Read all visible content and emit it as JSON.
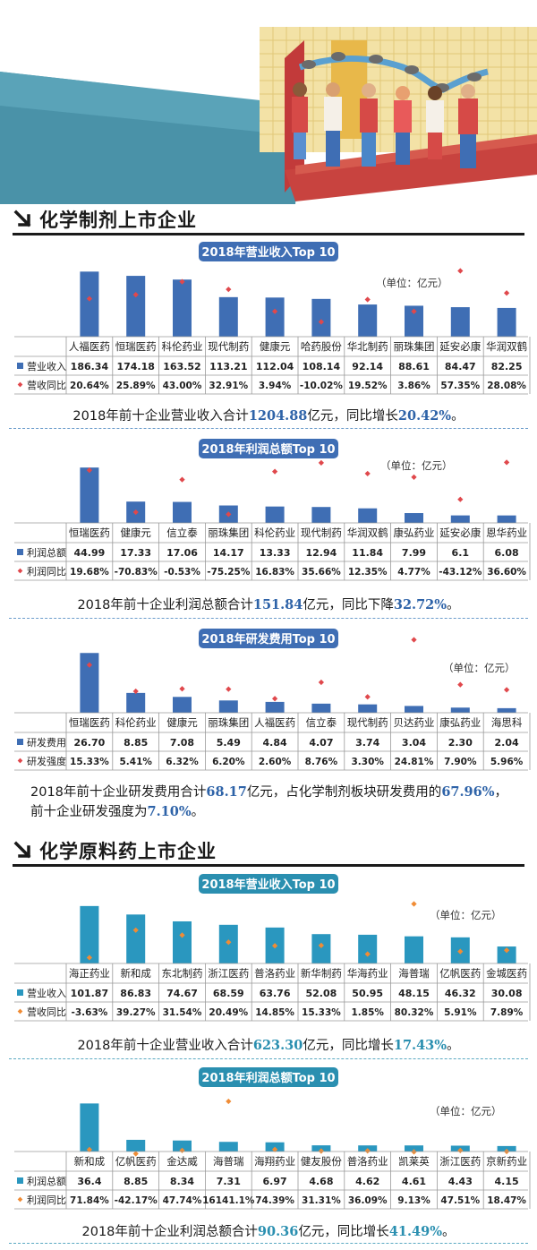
{
  "sections": [
    {
      "title": "化学制剂上市企业"
    },
    {
      "title": "化学原料药上市企业"
    }
  ],
  "colors": {
    "blue_bar": "#3f6eb4",
    "blue_title": "#3f6eb4",
    "teal_bar": "#2a97bf",
    "teal_title": "#2a8fb0",
    "red_dot": "#e0484c",
    "orange_dot": "#f08c35",
    "blue_text": "#2e63a8",
    "teal_text": "#2a8fb0"
  },
  "charts": [
    {
      "title": "2018年营业收入Top 10",
      "unit": "（单位：亿元）",
      "theme": "blue",
      "row1_label": "营业收入",
      "row2_label": "营收同比",
      "summary": {
        "pre": "2018年前十企业营业收入合计",
        "num1": "1204.88",
        "mid": "亿元，同比增长",
        "num2": "20.42%",
        "post": "。"
      }
    },
    {
      "title": "2018年利润总额Top 10",
      "unit": "（单位：亿元）",
      "theme": "blue",
      "row1_label": "利润总额",
      "row2_label": "利润同比",
      "summary": {
        "pre": "2018年前十企业利润总额合计",
        "num1": "151.84",
        "mid": "亿元，同比下降",
        "num2": "32.72%",
        "post": "。"
      }
    },
    {
      "title": "2018年研发费用Top 10",
      "unit": "（单位：亿元）",
      "theme": "blue",
      "row1_label": "研发费用",
      "row2_label": "研发强度",
      "summary": {
        "line1_pre": "2018年前十企业研发费用合计",
        "line1_num1": "68.17",
        "line1_mid": "亿元，占化学制剂板块研发费用的",
        "line1_num2": "67.96%",
        "line1_post": "，",
        "line2_pre": "前十企业研发强度为",
        "line2_num": "7.10%",
        "line2_post": "。"
      }
    },
    {
      "title": "2018年营业收入Top 10",
      "unit": "（单位：亿元）",
      "theme": "teal",
      "row1_label": "营业收入",
      "row2_label": "营收同比",
      "summary": {
        "pre": "2018年前十企业营业收入合计",
        "num1": "623.30",
        "mid": "亿元，同比增长",
        "num2": "17.43%",
        "post": "。"
      }
    },
    {
      "title": "2018年利润总额Top 10",
      "unit": "（单位：亿元）",
      "theme": "teal",
      "row1_label": "利润总额",
      "row2_label": "利润同比",
      "summary": {
        "pre": "2018年前十企业利润总额合计",
        "num1": "90.36",
        "mid": "亿元，同比增长",
        "num2": "41.49%",
        "post": "。"
      }
    }
  ],
  "chart_data": [
    {
      "type": "bar",
      "title": "2018年营业收入Top 10",
      "categories": [
        "人福医药",
        "恒瑞医药",
        "科伦药业",
        "现代制药",
        "健康元",
        "哈药股份",
        "华北制药",
        "丽珠集团",
        "延安必康",
        "华润双鹤"
      ],
      "values": [
        186.34,
        174.18,
        163.52,
        113.21,
        112.04,
        108.14,
        92.14,
        88.61,
        84.47,
        82.25
      ],
      "labels": [
        "186.34",
        "174.18",
        "163.52",
        "113.21",
        "112.04",
        "108.14",
        "92.14",
        "88.61",
        "84.47",
        "82.25"
      ],
      "series2_values": [
        20.64,
        25.89,
        43.0,
        32.91,
        3.94,
        -10.02,
        19.52,
        3.86,
        57.35,
        28.08
      ],
      "series2_labels": [
        "20.64%",
        "25.89%",
        "43.00%",
        "32.91%",
        "3.94%",
        "-10.02%",
        "19.52%",
        "3.86%",
        "57.35%",
        "28.08%"
      ],
      "ylim": [
        0,
        200
      ],
      "y2lim": [
        -20,
        65
      ]
    },
    {
      "type": "bar",
      "title": "2018年利润总额Top 10",
      "categories": [
        "恒瑞医药",
        "健康元",
        "信立泰",
        "丽珠集团",
        "科伦药业",
        "现代制药",
        "华润双鹤",
        "康弘药业",
        "延安必康",
        "恩华药业"
      ],
      "values": [
        44.99,
        17.33,
        17.06,
        14.17,
        13.33,
        12.94,
        11.84,
        7.99,
        6.1,
        6.08
      ],
      "labels": [
        "44.99",
        "17.33",
        "17.06",
        "14.17",
        "13.33",
        "12.94",
        "11.84",
        "7.99",
        "6.1",
        "6.08"
      ],
      "series2_values": [
        19.68,
        -70.83,
        -0.53,
        -75.25,
        16.83,
        35.66,
        12.35,
        4.77,
        -43.12,
        36.6
      ],
      "series2_labels": [
        "19.68%",
        "-70.83%",
        "-0.53%",
        "-75.25%",
        "16.83%",
        "35.66%",
        "12.35%",
        "4.77%",
        "-43.12%",
        "36.60%"
      ],
      "ylim": [
        0,
        48
      ],
      "y2lim": [
        -90,
        45
      ]
    },
    {
      "type": "bar",
      "title": "2018年研发费用Top 10",
      "categories": [
        "恒瑞医药",
        "科伦药业",
        "健康元",
        "丽珠集团",
        "人福医药",
        "信立泰",
        "现代制药",
        "贝达药业",
        "康弘药业",
        "海思科"
      ],
      "values": [
        26.7,
        8.85,
        7.08,
        5.49,
        4.84,
        4.07,
        3.74,
        3.04,
        2.3,
        2.04
      ],
      "labels": [
        "26.70",
        "8.85",
        "7.08",
        "5.49",
        "4.84",
        "4.07",
        "3.74",
        "3.04",
        "2.30",
        "2.04"
      ],
      "series2_values": [
        15.33,
        5.41,
        6.32,
        6.2,
        2.6,
        8.76,
        3.3,
        24.81,
        7.9,
        5.96
      ],
      "series2_labels": [
        "15.33%",
        "5.41%",
        "6.32%",
        "6.20%",
        "2.60%",
        "8.76%",
        "3.30%",
        "24.81%",
        "7.90%",
        "5.96%"
      ],
      "ylim": [
        0,
        28
      ],
      "y2lim": [
        0,
        27
      ]
    },
    {
      "type": "bar",
      "title": "2018年营业收入Top 10",
      "categories": [
        "海正药业",
        "新和成",
        "东北制药",
        "浙江医药",
        "普洛药业",
        "新华制药",
        "华海药业",
        "海普瑞",
        "亿帆医药",
        "金城医药"
      ],
      "values": [
        101.87,
        86.83,
        74.67,
        68.59,
        63.76,
        52.08,
        50.95,
        48.15,
        46.32,
        30.08
      ],
      "labels": [
        "101.87",
        "86.83",
        "74.67",
        "68.59",
        "63.76",
        "52.08",
        "50.95",
        "48.15",
        "46.32",
        "30.08"
      ],
      "series2_values": [
        -3.63,
        39.27,
        31.54,
        20.49,
        14.85,
        15.33,
        1.85,
        80.32,
        5.91,
        7.89
      ],
      "series2_labels": [
        "-3.63%",
        "39.27%",
        "31.54%",
        "20.49%",
        "14.85%",
        "15.33%",
        "1.85%",
        "80.32%",
        "5.91%",
        "7.89%"
      ],
      "ylim": [
        0,
        108
      ],
      "y2lim": [
        -10,
        88
      ]
    },
    {
      "type": "bar",
      "title": "2018年利润总额Top 10",
      "categories": [
        "新和成",
        "亿帆医药",
        "金达威",
        "海普瑞",
        "海翔药业",
        "健友股份",
        "普洛药业",
        "凯莱英",
        "浙江医药",
        "京新药业"
      ],
      "values": [
        36.4,
        8.85,
        8.34,
        7.31,
        6.97,
        4.68,
        4.62,
        4.61,
        4.43,
        4.15
      ],
      "labels": [
        "36.4",
        "8.85",
        "8.34",
        "7.31",
        "6.97",
        "4.68",
        "4.62",
        "4.61",
        "4.43",
        "4.15"
      ],
      "series2_values": [
        71.84,
        -42.17,
        47.74,
        16141.1,
        74.39,
        31.31,
        36.09,
        9.13,
        47.51,
        18.47
      ],
      "series2_labels": [
        "71.84%",
        "-42.17%",
        "47.74%",
        "16141.1%",
        "74.39%",
        "31.31%",
        "36.09%",
        "9.13%",
        "47.51%",
        "18.47%"
      ],
      "ylim": [
        0,
        38
      ],
      "y2lim": [
        -80,
        1400
      ]
    }
  ]
}
